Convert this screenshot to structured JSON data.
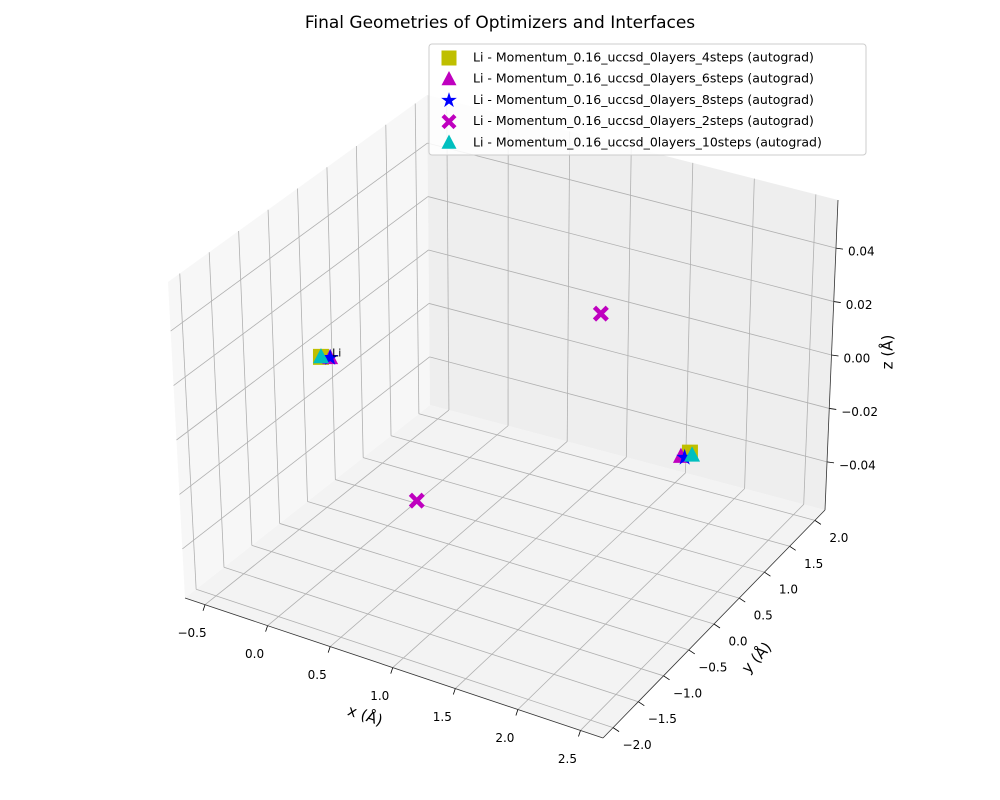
{
  "chart_data": {
    "type": "scatter3d",
    "title": "Final Geometries of Optimizers and Interfaces",
    "xlabel": "x (Å)",
    "ylabel": "y (Å)",
    "zlabel": "z (Å)",
    "xlim": [
      -0.66,
      2.68
    ],
    "ylim": [
      -2.2,
      2.2
    ],
    "zlim": [
      -0.058,
      0.058
    ],
    "xticks": [
      {
        "value": -0.5,
        "label": "−0.5"
      },
      {
        "value": 0,
        "label": "0.0"
      },
      0.5,
      {
        "value": 1,
        "label": "1.0"
      },
      1.5,
      {
        "value": 2,
        "label": "2.0"
      },
      2.5
    ],
    "yticks": [
      {
        "value": -2,
        "label": "−2.0"
      },
      {
        "value": -1.5,
        "label": "−1.5"
      },
      {
        "value": -1,
        "label": "−1.0"
      },
      {
        "value": -0.5,
        "label": "−0.5"
      },
      {
        "value": 0,
        "label": "0.0"
      },
      0.5,
      {
        "value": 1,
        "label": "1.0"
      },
      1.5,
      {
        "value": 2,
        "label": "2.0"
      }
    ],
    "zticks": [
      {
        "value": -0.04,
        "label": "−0.04"
      },
      {
        "value": -0.02,
        "label": "−0.02"
      },
      {
        "value": 0,
        "label": "0.00"
      },
      0.02,
      0.04
    ],
    "grid": true,
    "legend": "upper right",
    "series": [
      {
        "name": "Li - Momentum_0.16_uccsd_0layers_4steps (autograd)",
        "color": "#bfbf00",
        "marker": "s",
        "x": [
          -0.46,
          2.45
        ],
        "y": [
          -0.11,
          0.05
        ],
        "z": [
          0,
          0
        ]
      },
      {
        "name": "Li - Momentum_0.16_uccsd_0layers_6steps (autograd)",
        "color": "#bf00bf",
        "marker": "^",
        "x": [
          -0.4,
          2.42
        ],
        "y": [
          -0.08,
          -0.05
        ],
        "z": [
          0,
          0
        ]
      },
      {
        "name": "Li - Momentum_0.16_uccsd_0layers_8steps (autograd)",
        "color": "#0000ff",
        "marker": "*",
        "x": [
          -0.4,
          2.45
        ],
        "y": [
          -0.08,
          -0.05
        ],
        "z": [
          0,
          0
        ]
      },
      {
        "name": "Li - Momentum_0.16_uccsd_0layers_2steps (autograd)",
        "color": "#bf00bf",
        "marker": "X",
        "x": [
          0.91,
          1.14
        ],
        "y": [
          1.89,
          -1.98
        ],
        "z": [
          0,
          0
        ]
      },
      {
        "name": "Li - Momentum_0.16_uccsd_0layers_10steps (autograd)",
        "color": "#00bfbf",
        "marker": "^",
        "x": [
          -0.46,
          2.48
        ],
        "y": [
          -0.11,
          0.02
        ],
        "z": [
          0,
          0
        ]
      }
    ],
    "annotations": [
      {
        "text": "Li",
        "x": -0.4,
        "y": -0.08,
        "z": 0
      }
    ]
  }
}
